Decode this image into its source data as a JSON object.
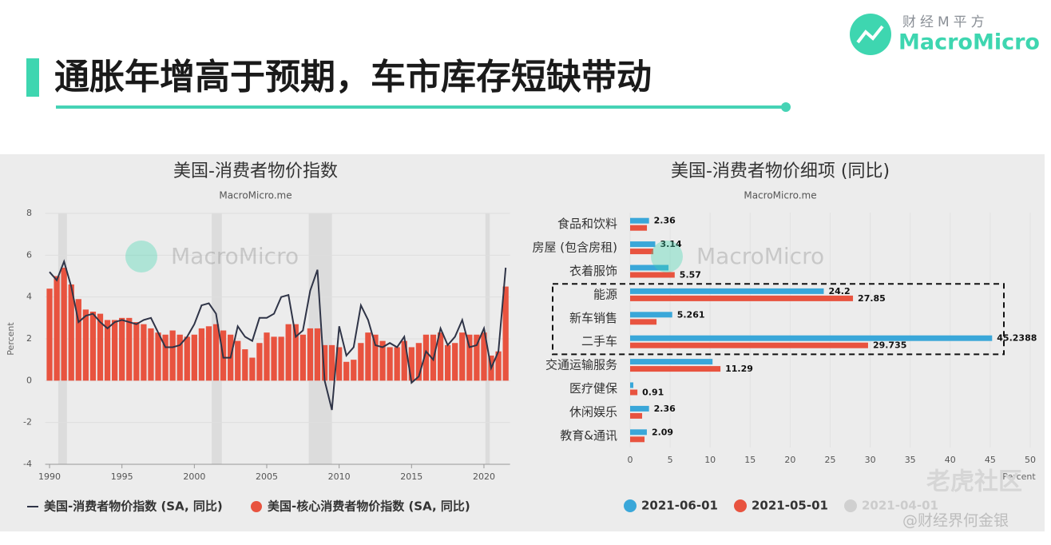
{
  "header": {
    "title": "通胀年增高于预期，车市库存短缺带动",
    "logo_cn": "财经M平方",
    "logo_en": "MacroMicro"
  },
  "overlay": {
    "site": "老虎社区",
    "author": "@财经界何金银"
  },
  "chart_data": [
    {
      "type": "line",
      "title": "美国-消费者物价指数",
      "subtitle": "MacroMicro.me",
      "watermark": "MacroMicro",
      "y_label": "Percent",
      "xlim": [
        1989.7,
        2021.8
      ],
      "xticks": [
        1990,
        1995,
        2000,
        2005,
        2010,
        2015,
        2020
      ],
      "ylim": [
        -4,
        8
      ],
      "yticks": [
        -4,
        -2,
        0,
        2,
        4,
        6,
        8
      ],
      "shaded_periods": [
        [
          1990.6,
          1991.2
        ],
        [
          2001.2,
          2001.9
        ],
        [
          2007.9,
          2009.5
        ],
        [
          2020.1,
          2020.4
        ]
      ],
      "x": [
        1990.0,
        1990.5,
        1991.0,
        1991.5,
        1992.0,
        1992.5,
        1993.0,
        1993.5,
        1994.0,
        1994.5,
        1995.0,
        1995.5,
        1996.0,
        1996.5,
        1997.0,
        1997.5,
        1998.0,
        1998.5,
        1999.0,
        1999.5,
        2000.0,
        2000.5,
        2001.0,
        2001.5,
        2002.0,
        2002.5,
        2003.0,
        2003.5,
        2004.0,
        2004.5,
        2005.0,
        2005.5,
        2006.0,
        2006.5,
        2007.0,
        2007.5,
        2008.0,
        2008.5,
        2009.0,
        2009.5,
        2010.0,
        2010.5,
        2011.0,
        2011.5,
        2012.0,
        2012.5,
        2013.0,
        2013.5,
        2014.0,
        2014.5,
        2015.0,
        2015.5,
        2016.0,
        2016.5,
        2017.0,
        2017.5,
        2018.0,
        2018.5,
        2019.0,
        2019.5,
        2020.0,
        2020.5,
        2021.0,
        2021.5
      ],
      "series": [
        {
          "name": "美国-消费者物价指数 (SA, 同比)",
          "type": "line",
          "color": "#2f3447",
          "values": [
            5.2,
            4.8,
            5.7,
            4.5,
            2.8,
            3.1,
            3.2,
            2.8,
            2.5,
            2.8,
            2.9,
            2.8,
            2.7,
            2.9,
            3.0,
            2.3,
            1.6,
            1.6,
            1.7,
            2.1,
            2.7,
            3.6,
            3.7,
            3.2,
            1.1,
            1.1,
            2.6,
            2.1,
            1.9,
            3.0,
            3.0,
            3.2,
            4.0,
            4.1,
            2.1,
            2.4,
            4.3,
            5.3,
            0.0,
            -1.4,
            2.6,
            1.2,
            1.6,
            3.6,
            2.9,
            1.7,
            1.6,
            1.8,
            1.6,
            2.1,
            -0.1,
            0.2,
            1.4,
            1.0,
            2.5,
            1.7,
            2.1,
            2.9,
            1.6,
            1.7,
            2.5,
            0.6,
            1.4,
            5.4
          ]
        },
        {
          "name": "美国-核心消费者物价指数 (SA, 同比)",
          "type": "bar",
          "color": "#e8533f",
          "values": [
            4.4,
            5.0,
            5.4,
            4.6,
            3.9,
            3.4,
            3.3,
            3.2,
            2.9,
            2.9,
            3.0,
            3.0,
            2.8,
            2.7,
            2.5,
            2.3,
            2.2,
            2.4,
            2.2,
            2.1,
            2.2,
            2.5,
            2.6,
            2.7,
            2.4,
            2.2,
            1.9,
            1.5,
            1.1,
            1.8,
            2.3,
            2.1,
            2.1,
            2.7,
            2.7,
            2.2,
            2.5,
            2.5,
            1.7,
            1.7,
            1.6,
            0.9,
            1.0,
            1.8,
            2.3,
            2.2,
            1.9,
            1.6,
            1.6,
            1.9,
            1.6,
            1.8,
            2.2,
            2.2,
            2.3,
            1.7,
            1.8,
            2.3,
            2.2,
            2.2,
            2.3,
            1.2,
            1.4,
            4.5
          ]
        }
      ]
    },
    {
      "type": "hbar",
      "title": "美国-消费者物价细项 (同比)",
      "subtitle": "MacroMicro.me",
      "watermark": "MacroMicro",
      "x_label": "Percent",
      "categories": [
        "食品和饮料",
        "房屋 (包含房租)",
        "衣着服饰",
        "能源",
        "新车销售",
        "二手车",
        "交通运输服务",
        "医疗健保",
        "休闲娱乐",
        "教育&通讯"
      ],
      "xlim": [
        0,
        50
      ],
      "xticks": [
        0,
        5,
        10,
        15,
        20,
        25,
        30,
        35,
        40,
        45,
        50
      ],
      "highlight": [
        3,
        5
      ],
      "series": [
        {
          "name": "2021-06-01",
          "color": "#3aa7d9",
          "values": [
            2.36,
            3.14,
            4.8,
            24.2,
            5.261,
            45.2388,
            10.3,
            0.4,
            2.36,
            2.09
          ],
          "value_labels": [
            "2.36",
            "3.14",
            null,
            "24.2",
            "5.261",
            "45.2388",
            null,
            null,
            "2.36",
            "2.09"
          ]
        },
        {
          "name": "2021-05-01",
          "color": "#e8533f",
          "values": [
            2.1,
            2.9,
            5.57,
            27.85,
            3.3,
            29.735,
            11.29,
            0.91,
            1.5,
            1.8
          ],
          "value_labels": [
            null,
            null,
            "5.57",
            "27.85",
            null,
            "29.735",
            "11.29",
            "0.91",
            null,
            null
          ]
        },
        {
          "name": "2021-04-01",
          "color": "#d0d0d0",
          "visible": false
        }
      ]
    }
  ]
}
